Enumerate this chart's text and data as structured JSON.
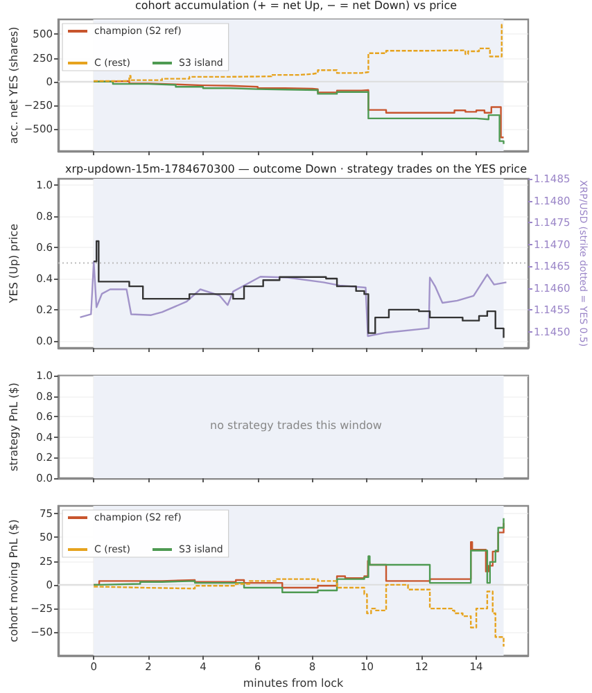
{
  "chart_data": [
    {
      "type": "step",
      "title": "cohort accumulation (+ = net Up, − = net Down) vs price",
      "ylabel": "acc. net YES (shares)",
      "xlim": [
        -1.3,
        15.9
      ],
      "xticks": [
        0,
        2,
        4,
        6,
        8,
        10,
        12,
        14
      ],
      "ylim": [
        -735,
        657
      ],
      "yticks": [
        {
          "value": -500,
          "label": "−500"
        },
        {
          "value": -250,
          "label": "−250"
        },
        0,
        250,
        500
      ],
      "tick_labels": "y",
      "grid": true,
      "legend": "top left",
      "marker": "none",
      "bands": [
        {
          "axis": "x",
          "from": 0,
          "to": 15,
          "color": "#eef1f8"
        }
      ],
      "ref_lines": [
        {
          "axis": "y",
          "value": 0,
          "color": "#dddddd"
        }
      ],
      "series": [
        {
          "name": "champion (S2 ref)",
          "color": "#c8552d",
          "line_style": "solid",
          "x": [
            0,
            0.5,
            1.3,
            2,
            3,
            4,
            5,
            6,
            7,
            8,
            8.2,
            8.9,
            9.8,
            10.05,
            10.7,
            12,
            13.2,
            13.6,
            14.0,
            14.3,
            14.55,
            14.9,
            15.0
          ],
          "values": [
            0,
            5,
            -20,
            -30,
            -40,
            -45,
            -55,
            -70,
            -75,
            -80,
            -115,
            -95,
            -90,
            -300,
            -330,
            -330,
            -305,
            -320,
            -305,
            -330,
            -270,
            -590,
            -600
          ]
        },
        {
          "name": "C (rest)",
          "color": "#e6a31e",
          "line_style": "dashed",
          "x": [
            0,
            1.3,
            1.35,
            2.5,
            3.5,
            5,
            6.5,
            7.5,
            8,
            8.2,
            8.9,
            9.8,
            10.05,
            10.7,
            12,
            13.5,
            13.6,
            13.7,
            14.1,
            14.5,
            14.93,
            15.0
          ],
          "values": [
            5,
            60,
            15,
            30,
            50,
            55,
            70,
            80,
            90,
            120,
            90,
            100,
            300,
            325,
            330,
            330,
            290,
            320,
            350,
            265,
            600,
            600
          ]
        },
        {
          "name": "S3 island",
          "color": "#4e9a52",
          "line_style": "solid",
          "x": [
            0,
            0.7,
            2,
            3,
            4,
            5,
            6,
            7,
            8.2,
            8.9,
            10.05,
            12,
            14.0,
            14.45,
            14.85,
            15.0
          ],
          "values": [
            0,
            -25,
            -35,
            -55,
            -70,
            -80,
            -85,
            -90,
            -130,
            -110,
            -390,
            -390,
            -400,
            -355,
            -630,
            -660
          ]
        }
      ]
    },
    {
      "type": "step",
      "title": "xrp-updown-15m-1784670300 — outcome Down · strategy trades on the YES price",
      "ylabel": "YES (Up) price",
      "y2label": "XRP/USD (strike dotted = YES 0.5)",
      "xlim": [
        -1.3,
        15.9
      ],
      "xticks": [
        0,
        2,
        4,
        6,
        8,
        10,
        12,
        14
      ],
      "ylim": [
        -0.045,
        1.04
      ],
      "yticks": [
        {
          "value": 0,
          "label": "0.0"
        },
        {
          "value": 0.2,
          "label": "0.2"
        },
        {
          "value": 0.4,
          "label": "0.4"
        },
        {
          "value": 0.6,
          "label": "0.6"
        },
        {
          "value": 0.8,
          "label": "0.8"
        },
        {
          "value": 1,
          "label": "1.0"
        }
      ],
      "y2lim": [
        1.14463,
        1.1485
      ],
      "y2ticks": [
        {
          "value": 1.145,
          "label": "1.1450"
        },
        1.1455,
        {
          "value": 1.146,
          "label": "1.1460"
        },
        1.1465,
        {
          "value": 1.147,
          "label": "1.1470"
        },
        1.1475,
        {
          "value": 1.148,
          "label": "1.1480"
        },
        1.1485
      ],
      "tick_labels": "y",
      "grid": true,
      "marker": "none",
      "bands": [
        {
          "axis": "x",
          "from": 0,
          "to": 15,
          "color": "#eef1f8"
        }
      ],
      "ref_lines": [
        {
          "axis": "y",
          "value": 0.5,
          "color": "#bbbbbb",
          "line_style": "dotted"
        }
      ],
      "series": [
        {
          "color": "#a193c9",
          "type": "line",
          "axis": "y2",
          "x": [
            -0.5,
            -0.1,
            0,
            0.1,
            0.3,
            0.6,
            1.2,
            1.37,
            2.1,
            2.5,
            3.4,
            3.9,
            4.6,
            4.9,
            5.1,
            6.1,
            7.1,
            8.4,
            9.0,
            9.95,
            10.03,
            10.7,
            12.26,
            12.3,
            12.5,
            12.76,
            13.3,
            13.9,
            14.4,
            14.65,
            15.1
          ],
          "values": [
            1.14533,
            1.1454,
            1.1466,
            1.14556,
            1.14587,
            1.14597,
            1.14597,
            1.1454,
            1.14538,
            1.14545,
            1.14569,
            1.14597,
            1.14583,
            1.14561,
            1.14592,
            1.14626,
            1.14624,
            1.14613,
            1.14606,
            1.14601,
            1.1449,
            1.14498,
            1.14508,
            1.14624,
            1.14603,
            1.14566,
            1.14571,
            1.14582,
            1.14631,
            1.14608,
            1.14613
          ]
        },
        {
          "color": "#333333",
          "x": [
            0,
            0.1,
            0.18,
            1.3,
            1.8,
            3.5,
            5.1,
            5.5,
            6.2,
            6.8,
            8.5,
            8.9,
            9.6,
            9.9,
            10.05,
            10.3,
            10.8,
            11.9,
            12.3,
            13.5,
            14.1,
            14.4,
            14.7,
            15.0
          ],
          "values": [
            0.51,
            0.64,
            0.38,
            0.35,
            0.27,
            0.3,
            0.27,
            0.35,
            0.39,
            0.41,
            0.4,
            0.35,
            0.32,
            0.3,
            0.05,
            0.15,
            0.2,
            0.19,
            0.15,
            0.13,
            0.16,
            0.19,
            0.08,
            0.02
          ]
        }
      ]
    },
    {
      "type": "line",
      "ylabel": "strategy PnL ($)",
      "xlim": [
        -1.3,
        15.9
      ],
      "xticks": [
        0,
        2,
        4,
        6,
        8,
        10,
        12,
        14
      ],
      "ylim": [
        0,
        1
      ],
      "yticks": [
        {
          "value": 0,
          "label": "0.0"
        },
        {
          "value": 0.2,
          "label": "0.2"
        },
        {
          "value": 0.4,
          "label": "0.4"
        },
        {
          "value": 0.6,
          "label": "0.6"
        },
        {
          "value": 0.8,
          "label": "0.8"
        },
        {
          "value": 1,
          "label": "1.0"
        }
      ],
      "tick_labels": "y",
      "grid": true,
      "bands": [
        {
          "axis": "x",
          "from": 0,
          "to": 15,
          "color": "#eef1f8"
        }
      ],
      "annotations": [
        "no strategy trades this window"
      ]
    },
    {
      "type": "step",
      "xlabel": "minutes from lock",
      "ylabel": "cohort moving PnL ($)",
      "xlim": [
        -1.3,
        15.9
      ],
      "xticks": [
        0,
        2,
        4,
        6,
        8,
        10,
        12,
        14
      ],
      "ylim": [
        -74.5,
        83
      ],
      "yticks": [
        {
          "value": -50,
          "label": "−50"
        },
        {
          "value": -25,
          "label": "−25"
        },
        0,
        25,
        50,
        75
      ],
      "grid": true,
      "legend": "top left",
      "marker": "none",
      "bands": [
        {
          "axis": "x",
          "from": 0,
          "to": 15,
          "color": "#eef1f8"
        }
      ],
      "ref_lines": [
        {
          "axis": "y",
          "value": 0,
          "color": "#dddddd"
        }
      ],
      "series": [
        {
          "name": "champion (S2 ref)",
          "color": "#c8552d",
          "line_style": "solid",
          "x": [
            0,
            0.2,
            1.7,
            2.5,
            3.7,
            5.0,
            5.2,
            5.5,
            6.9,
            8.2,
            8.9,
            9.2,
            9.9,
            10.03,
            10.07,
            10.1,
            10.7,
            12.3,
            13.8,
            13.85,
            14.35,
            14.45,
            14.6,
            14.8,
            15.0
          ],
          "values": [
            0,
            4,
            4,
            5,
            3,
            3,
            5,
            2,
            -3,
            -1,
            9,
            7,
            9,
            25,
            30,
            21,
            4,
            6,
            45,
            37,
            14,
            20,
            35,
            55,
            65
          ]
        },
        {
          "name": "C (rest)",
          "color": "#e6a31e",
          "line_style": "dashed",
          "x": [
            0,
            0.2,
            1.7,
            3.7,
            5.2,
            5.7,
            6.7,
            8.2,
            8.9,
            9.9,
            10.0,
            10.15,
            10.3,
            10.7,
            11.5,
            12.3,
            13.1,
            13.2,
            13.5,
            13.8,
            14.0,
            14.3,
            14.4,
            14.6,
            14.7,
            15.0
          ],
          "values": [
            -2,
            -3,
            -4,
            -1,
            1,
            4,
            6,
            4,
            -3,
            -10,
            -30,
            -25,
            -27,
            0,
            -5,
            -25,
            -27,
            -30,
            -33,
            -45,
            -25,
            -25,
            -7,
            -30,
            -55,
            -65
          ]
        },
        {
          "name": "S3 island",
          "color": "#4e9a52",
          "line_style": "solid",
          "x": [
            0,
            0.2,
            1.7,
            2.5,
            3.7,
            5.5,
            6.9,
            8.2,
            8.9,
            9.9,
            10.05,
            10.1,
            12.3,
            13.8,
            14.4,
            14.5,
            14.7,
            14.8,
            15.0
          ],
          "values": [
            0,
            1,
            3,
            4,
            2,
            -3,
            -8,
            -6,
            6,
            8,
            30,
            21,
            2,
            36,
            2,
            24,
            36,
            60,
            70
          ]
        }
      ]
    }
  ]
}
